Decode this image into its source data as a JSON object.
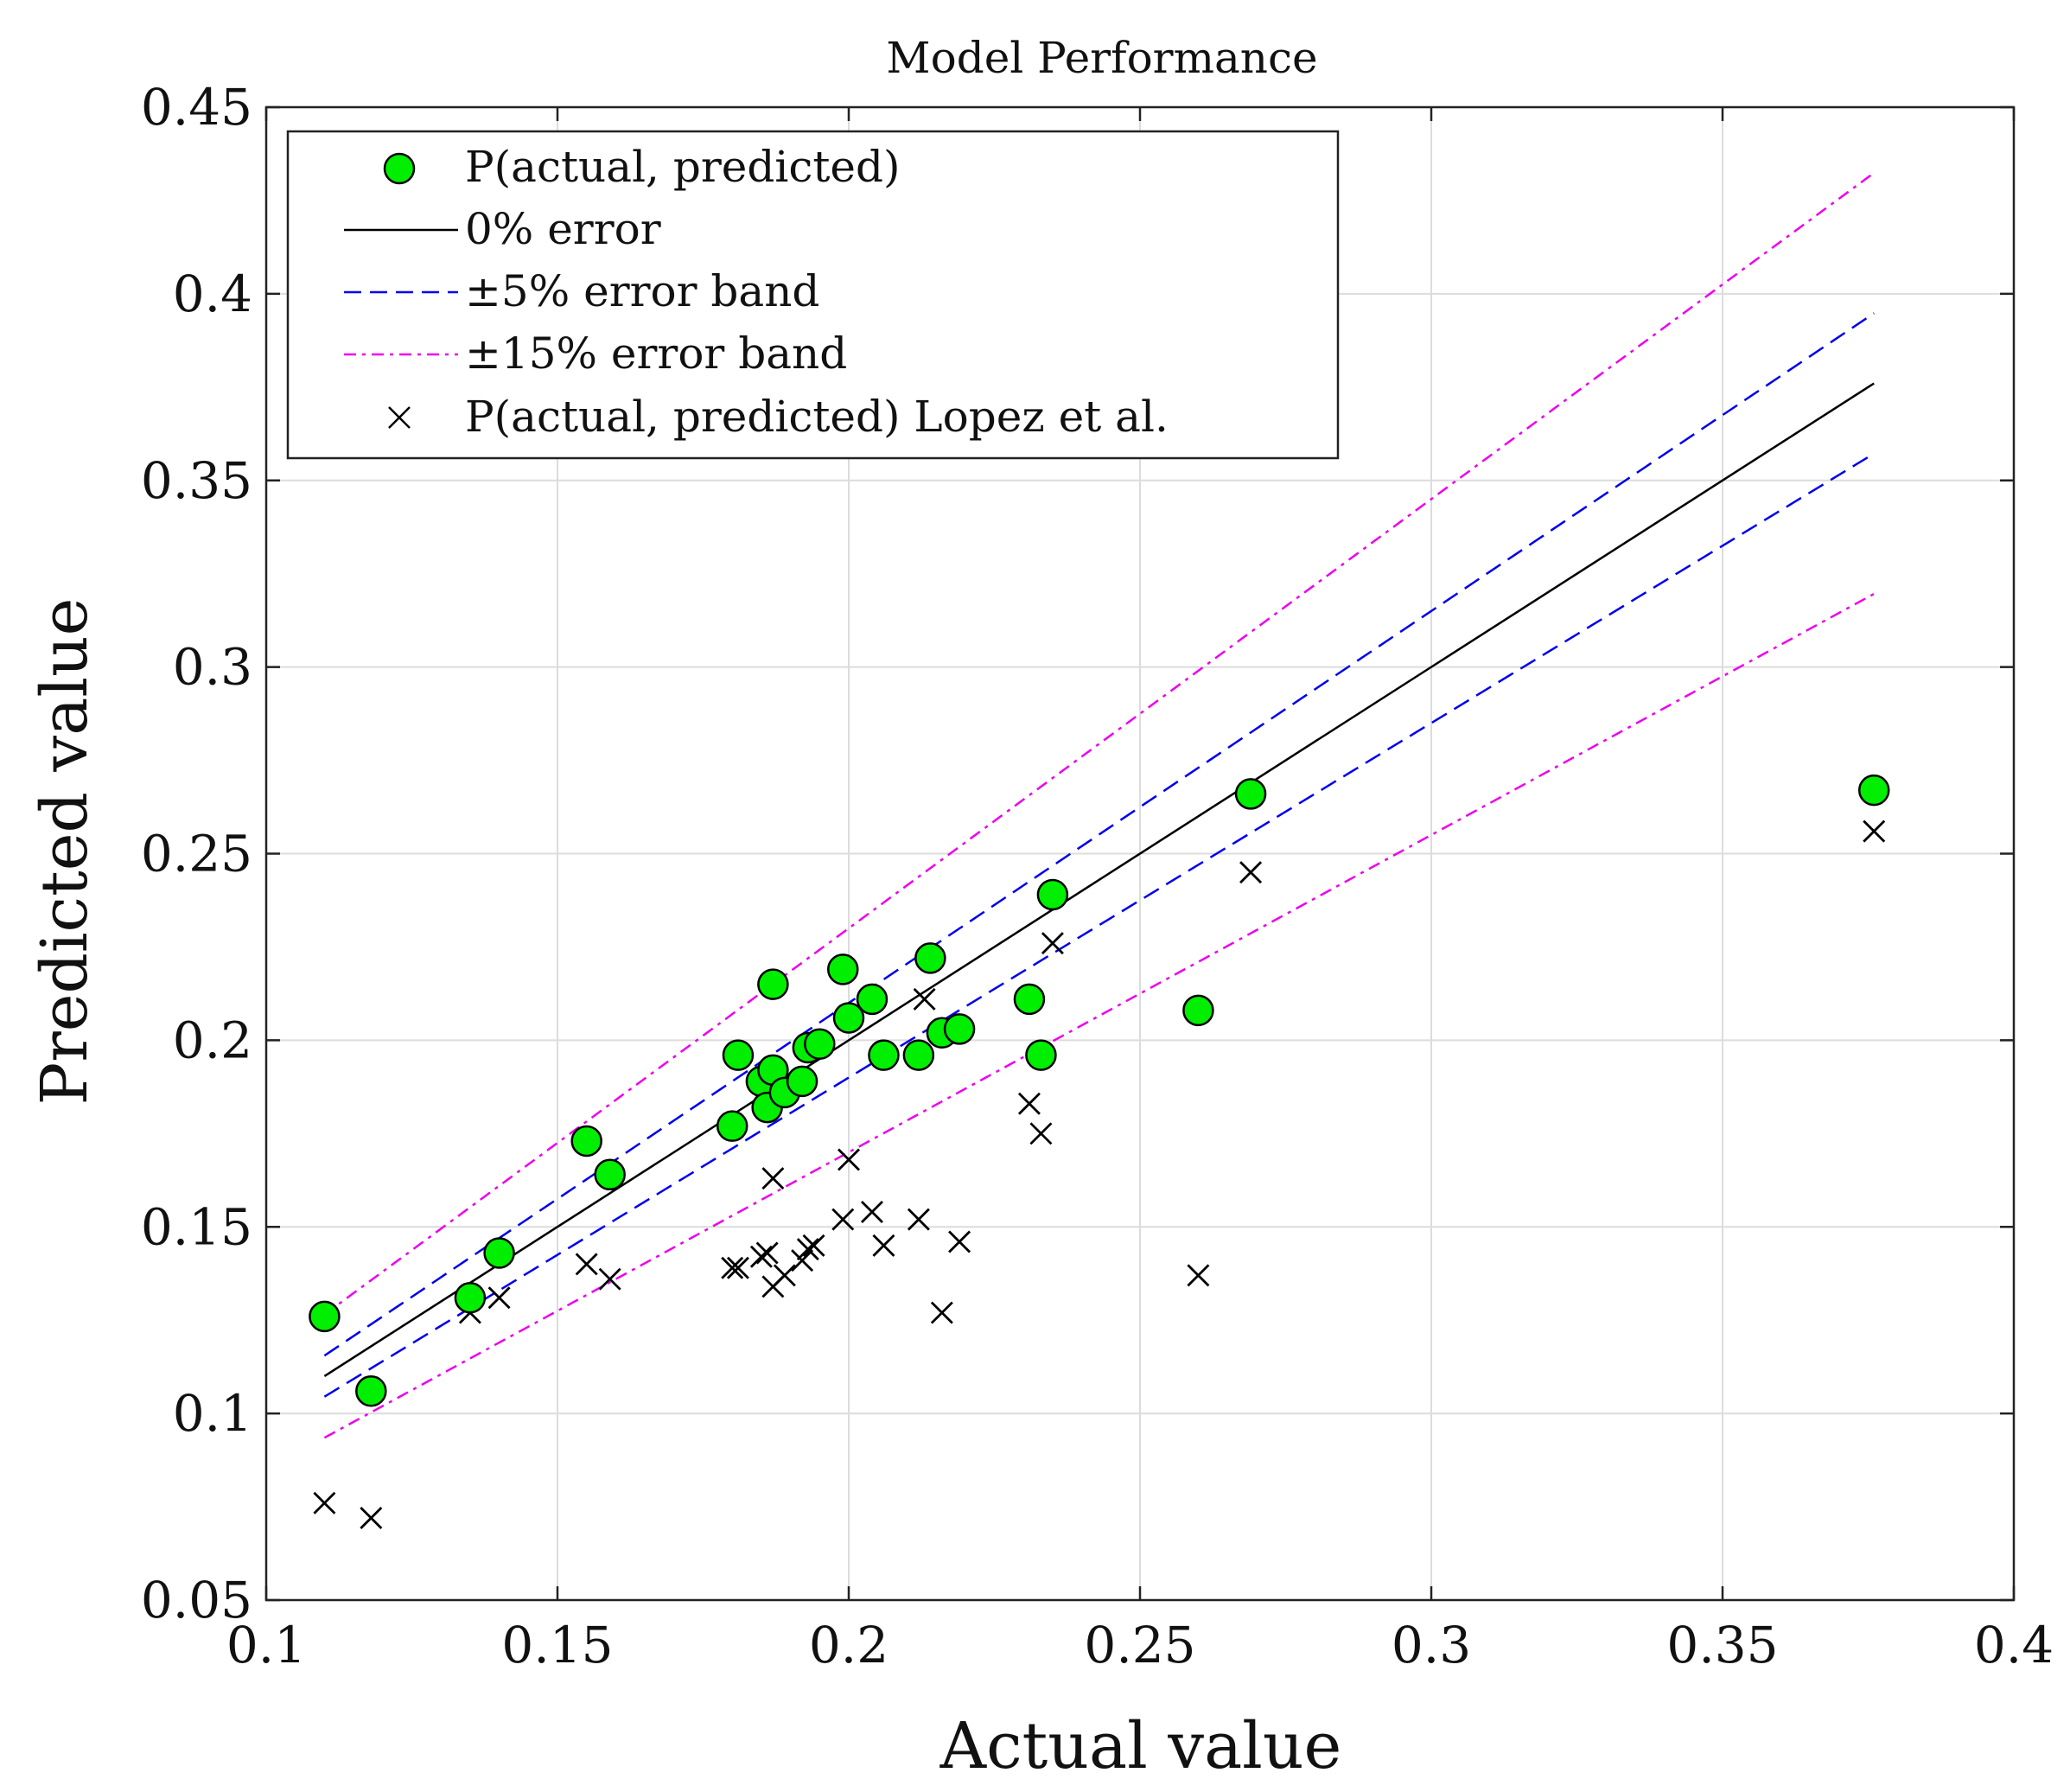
{
  "chart_data": {
    "type": "scatter",
    "title": "Model Performance",
    "xlabel": "Actual value",
    "ylabel": "Predicted value",
    "xlim": [
      0.1,
      0.4
    ],
    "ylim": [
      0.05,
      0.45
    ],
    "grid": true,
    "x_ticks": [
      0.1,
      0.15,
      0.2,
      0.25,
      0.3,
      0.35,
      0.4
    ],
    "y_ticks": [
      0.05,
      0.1,
      0.15,
      0.2,
      0.25,
      0.3,
      0.35,
      0.4,
      0.45
    ],
    "x_tick_labels": [
      "0.1",
      "0.15",
      "0.2",
      "0.25",
      "0.3",
      "0.35",
      "0.4"
    ],
    "y_tick_labels": [
      "0.05",
      "0.1",
      "0.15",
      "0.2",
      "0.25",
      "0.3",
      "0.35",
      "0.4",
      "0.45"
    ],
    "legend_position": "top-left",
    "legend": [
      {
        "key": "points",
        "label": "P(actual, predicted)"
      },
      {
        "key": "zero",
        "label": "0% error"
      },
      {
        "key": "band5",
        "label": "±5% error band"
      },
      {
        "key": "band15",
        "label": "±15% error band"
      },
      {
        "key": "lopez",
        "label": "P(actual, predicted) Lopez et al."
      }
    ],
    "colors": {
      "points_fill": "#00ee00",
      "points_edge": "#000000",
      "zero_line": "#000000",
      "band5": "#0000ee",
      "band15": "#ee00ee",
      "lopez": "#000000",
      "grid": "#dcdcdc"
    },
    "reference_lines": {
      "x_range": [
        0.11,
        0.376
      ],
      "zero_error": 0.0,
      "band5": 0.05,
      "band15": 0.15
    },
    "series": [
      {
        "name": "P(actual, predicted)",
        "x": [
          0.11,
          0.118,
          0.135,
          0.14,
          0.155,
          0.159,
          0.18,
          0.181,
          0.185,
          0.186,
          0.187,
          0.187,
          0.189,
          0.192,
          0.193,
          0.195,
          0.199,
          0.2,
          0.204,
          0.206,
          0.212,
          0.214,
          0.216,
          0.219,
          0.231,
          0.233,
          0.235,
          0.26,
          0.269,
          0.376
        ],
        "y": [
          0.126,
          0.106,
          0.131,
          0.143,
          0.173,
          0.164,
          0.177,
          0.196,
          0.189,
          0.182,
          0.215,
          0.192,
          0.186,
          0.189,
          0.198,
          0.199,
          0.219,
          0.206,
          0.211,
          0.196,
          0.196,
          0.222,
          0.202,
          0.203,
          0.211,
          0.196,
          0.239,
          0.208,
          0.266,
          0.267
        ]
      },
      {
        "name": "P(actual, predicted) Lopez et al.",
        "x": [
          0.11,
          0.118,
          0.135,
          0.14,
          0.155,
          0.159,
          0.18,
          0.181,
          0.185,
          0.186,
          0.187,
          0.187,
          0.189,
          0.192,
          0.193,
          0.194,
          0.199,
          0.2,
          0.204,
          0.206,
          0.212,
          0.213,
          0.216,
          0.219,
          0.231,
          0.233,
          0.235,
          0.26,
          0.269,
          0.376
        ],
        "y": [
          0.076,
          0.072,
          0.127,
          0.131,
          0.14,
          0.136,
          0.139,
          0.139,
          0.142,
          0.143,
          0.163,
          0.134,
          0.137,
          0.141,
          0.144,
          0.145,
          0.152,
          0.168,
          0.154,
          0.145,
          0.152,
          0.211,
          0.127,
          0.146,
          0.183,
          0.175,
          0.226,
          0.137,
          0.245,
          0.256
        ]
      }
    ]
  }
}
